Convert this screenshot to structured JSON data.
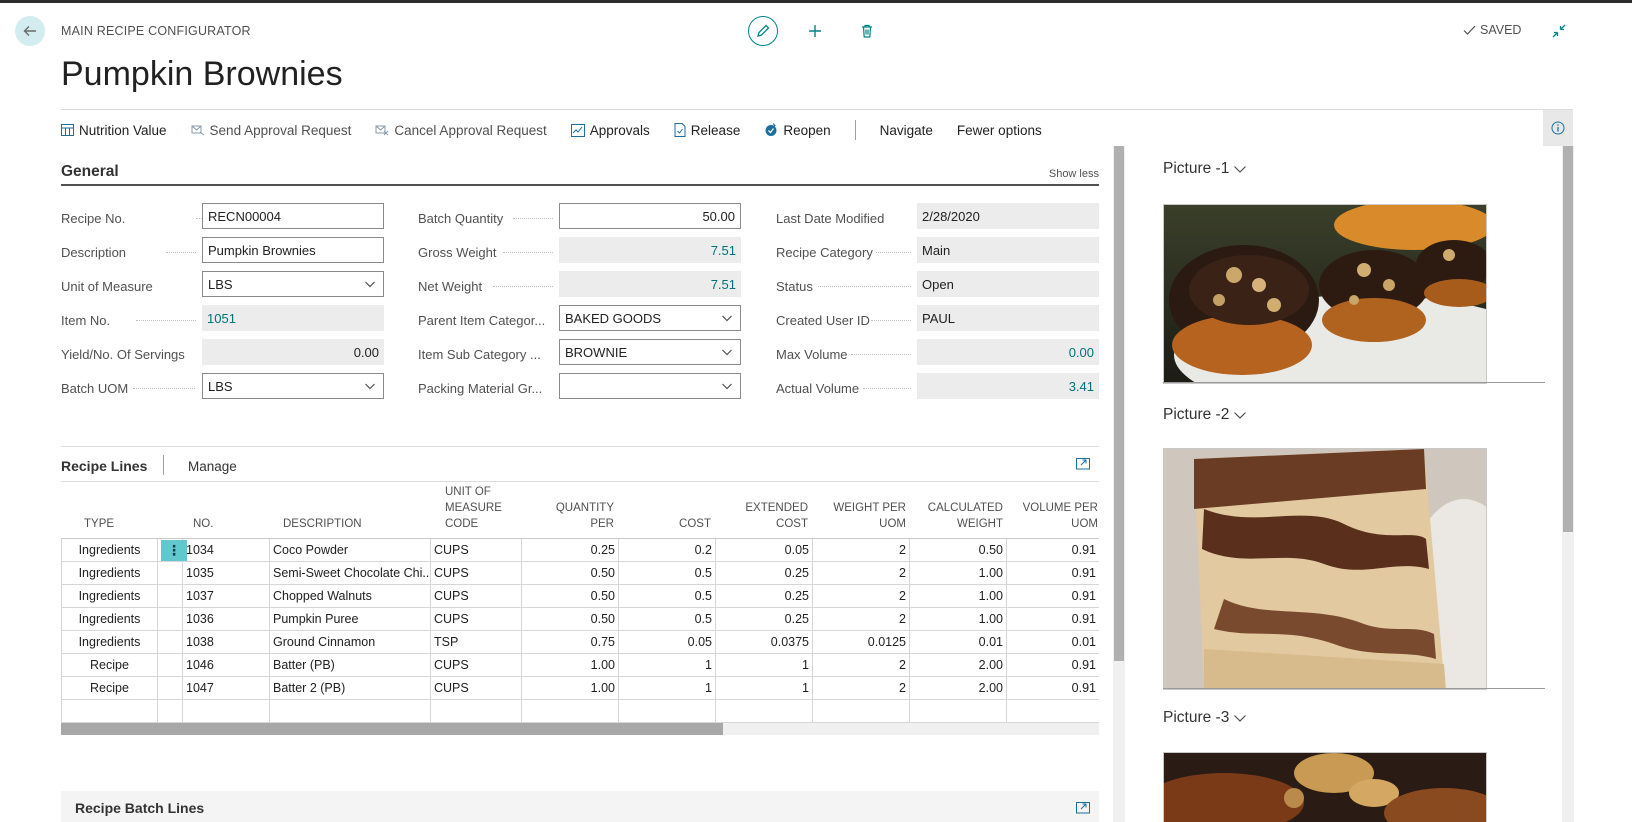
{
  "header": {
    "caption": "MAIN RECIPE CONFIGURATOR",
    "title": "Pumpkin Brownies",
    "saved_label": "SAVED"
  },
  "actions": {
    "nutrition": "Nutrition Value",
    "send_approval": "Send Approval Request",
    "cancel_approval": "Cancel Approval Request",
    "approvals": "Approvals",
    "release": "Release",
    "reopen": "Reopen",
    "navigate": "Navigate",
    "fewer": "Fewer options"
  },
  "general": {
    "title": "General",
    "show_less": "Show less",
    "fields": {
      "recipe_no": {
        "label": "Recipe No.",
        "value": "RECN00004"
      },
      "description": {
        "label": "Description",
        "value": "Pumpkin Brownies"
      },
      "uom": {
        "label": "Unit of Measure",
        "value": "LBS"
      },
      "item_no": {
        "label": "Item No.",
        "value": "1051"
      },
      "yield": {
        "label": "Yield/No. Of Servings",
        "value": "0.00"
      },
      "batch_uom": {
        "label": "Batch UOM",
        "value": "LBS"
      },
      "batch_qty": {
        "label": "Batch Quantity",
        "value": "50.00"
      },
      "gross_weight": {
        "label": "Gross Weight",
        "value": "7.51"
      },
      "net_weight": {
        "label": "Net Weight",
        "value": "7.51"
      },
      "parent_cat": {
        "label": "Parent Item Categor...",
        "value": "BAKED GOODS"
      },
      "sub_cat": {
        "label": "Item Sub Category ...",
        "value": "BROWNIE"
      },
      "packing": {
        "label": "Packing Material Gr...",
        "value": ""
      },
      "last_modified": {
        "label": "Last Date Modified",
        "value": "2/28/2020"
      },
      "recipe_cat": {
        "label": "Recipe Category",
        "value": "Main"
      },
      "status": {
        "label": "Status",
        "value": "Open"
      },
      "created_user": {
        "label": "Created User ID",
        "value": "PAUL"
      },
      "max_volume": {
        "label": "Max Volume",
        "value": "0.00"
      },
      "actual_volume": {
        "label": "Actual Volume",
        "value": "3.41"
      }
    }
  },
  "recipe_lines": {
    "title": "Recipe Lines",
    "manage": "Manage",
    "columns": {
      "type": "TYPE",
      "no": "NO.",
      "description": "DESCRIPTION",
      "uom_1": "UNIT OF",
      "uom_2": "MEASURE",
      "uom_3": "CODE",
      "qty_1": "QUANTITY",
      "qty_2": "PER",
      "cost": "COST",
      "ext_1": "EXTENDED",
      "ext_2": "COST",
      "wpu_1": "WEIGHT PER",
      "wpu_2": "UOM",
      "cw_1": "CALCULATED",
      "cw_2": "WEIGHT",
      "vpu_1": "VOLUME PER",
      "vpu_2": "UOM"
    },
    "rows": [
      {
        "type": "Ingredients",
        "no": "1034",
        "description": "Coco Powder",
        "uom": "CUPS",
        "qty": "0.25",
        "cost": "0.2",
        "ext": "0.05",
        "wpu": "2",
        "cw": "0.50",
        "vpu": "0.91"
      },
      {
        "type": "Ingredients",
        "no": "1035",
        "description": "Semi-Sweet Chocolate Chi...",
        "uom": "CUPS",
        "qty": "0.50",
        "cost": "0.5",
        "ext": "0.25",
        "wpu": "2",
        "cw": "1.00",
        "vpu": "0.91"
      },
      {
        "type": "Ingredients",
        "no": "1037",
        "description": "Chopped Walnuts",
        "uom": "CUPS",
        "qty": "0.50",
        "cost": "0.5",
        "ext": "0.25",
        "wpu": "2",
        "cw": "1.00",
        "vpu": "0.91"
      },
      {
        "type": "Ingredients",
        "no": "1036",
        "description": "Pumpkin Puree",
        "uom": "CUPS",
        "qty": "0.50",
        "cost": "0.5",
        "ext": "0.25",
        "wpu": "2",
        "cw": "1.00",
        "vpu": "0.91"
      },
      {
        "type": "Ingredients",
        "no": "1038",
        "description": "Ground Cinnamon",
        "uom": "TSP",
        "qty": "0.75",
        "cost": "0.05",
        "ext": "0.0375",
        "wpu": "0.0125",
        "cw": "0.01",
        "vpu": "0.01"
      },
      {
        "type": "Recipe",
        "no": "1046",
        "description": "Batter (PB)",
        "uom": "CUPS",
        "qty": "1.00",
        "cost": "1",
        "ext": "1",
        "wpu": "2",
        "cw": "2.00",
        "vpu": "0.91"
      },
      {
        "type": "Recipe",
        "no": "1047",
        "description": "Batter 2 (PB)",
        "uom": "CUPS",
        "qty": "1.00",
        "cost": "1",
        "ext": "1",
        "wpu": "2",
        "cw": "2.00",
        "vpu": "0.91"
      },
      {
        "type": "",
        "no": "",
        "description": "",
        "uom": "",
        "qty": "",
        "cost": "",
        "ext": "",
        "wpu": "",
        "cw": "",
        "vpu": ""
      }
    ]
  },
  "batch_lines": {
    "title": "Recipe Batch Lines"
  },
  "factbox": {
    "pictures": [
      {
        "label": "Picture -1"
      },
      {
        "label": "Picture -2"
      },
      {
        "label": "Picture -3"
      }
    ]
  },
  "colors": {
    "accent": "#008489",
    "link": "#00727a",
    "row_menu": "#62c8d0"
  }
}
